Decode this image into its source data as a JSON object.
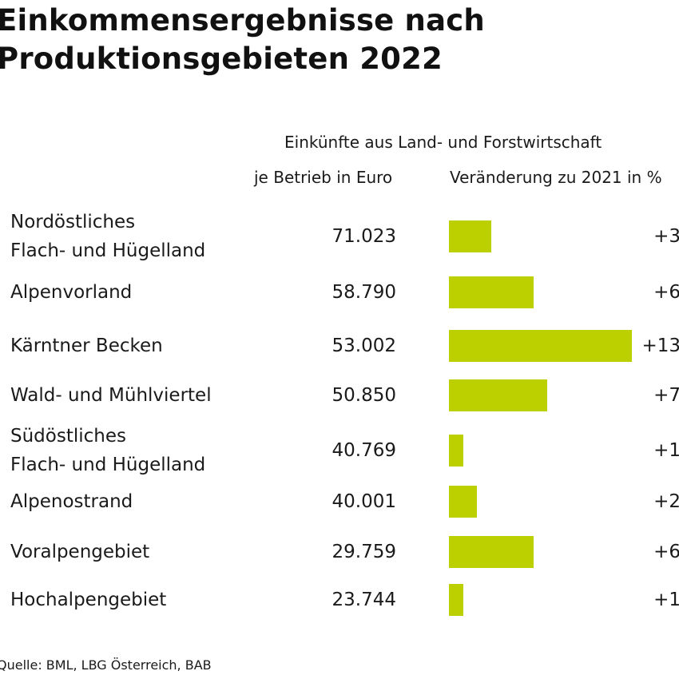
{
  "title": {
    "line1": "Einkommensergebnisse nach",
    "line2": "Produktionsgebieten 2022"
  },
  "headers": {
    "group": "Einkünfte aus Land- und Forstwirtschaft",
    "absolute": "je Betrieb in Euro",
    "change": "Veränderung zu 2021 in %"
  },
  "source": "Quelle: BML, LBG Österreich, BAB",
  "colors": {
    "bar": "#bcd000",
    "text": "#1a1a1a"
  },
  "chart_data": {
    "type": "bar",
    "orientation": "horizontal",
    "title": "Einkommensergebnisse nach Produktionsgebieten 2022",
    "categories": [
      "Nordöstliches Flach- und Hügelland",
      "Alpenvorland",
      "Kärntner Becken",
      "Wald- und Mühlviertel",
      "Südöstliches Flach- und Hügelland",
      "Alpenostrand",
      "Voralpengebiet",
      "Hochalpengebiet"
    ],
    "category_lines": [
      [
        "Nordöstliches",
        "Flach- und Hügelland"
      ],
      [
        "Alpenvorland"
      ],
      [
        "Kärntner Becken"
      ],
      [
        "Wald- und Mühlviertel"
      ],
      [
        "Südöstliches",
        "Flach- und Hügelland"
      ],
      [
        "Alpenostrand"
      ],
      [
        "Voralpengebiet"
      ],
      [
        "Hochalpengebiet"
      ]
    ],
    "income_per_farm_eur": [
      71023,
      58790,
      53002,
      50850,
      40769,
      40001,
      29759,
      23744
    ],
    "income_per_farm_labels": [
      "71.023",
      "58.790",
      "53.002",
      "50.850",
      "40.769",
      "40.001",
      "29.759",
      "23.744"
    ],
    "change_pct": [
      3,
      6,
      13,
      7,
      1,
      2,
      6,
      1
    ],
    "change_labels": [
      "+3",
      "+6",
      "+13",
      "+7",
      "+1",
      "+2",
      "+6",
      "+1"
    ],
    "xlim": [
      0,
      13
    ],
    "grid": false,
    "legend": "none"
  }
}
